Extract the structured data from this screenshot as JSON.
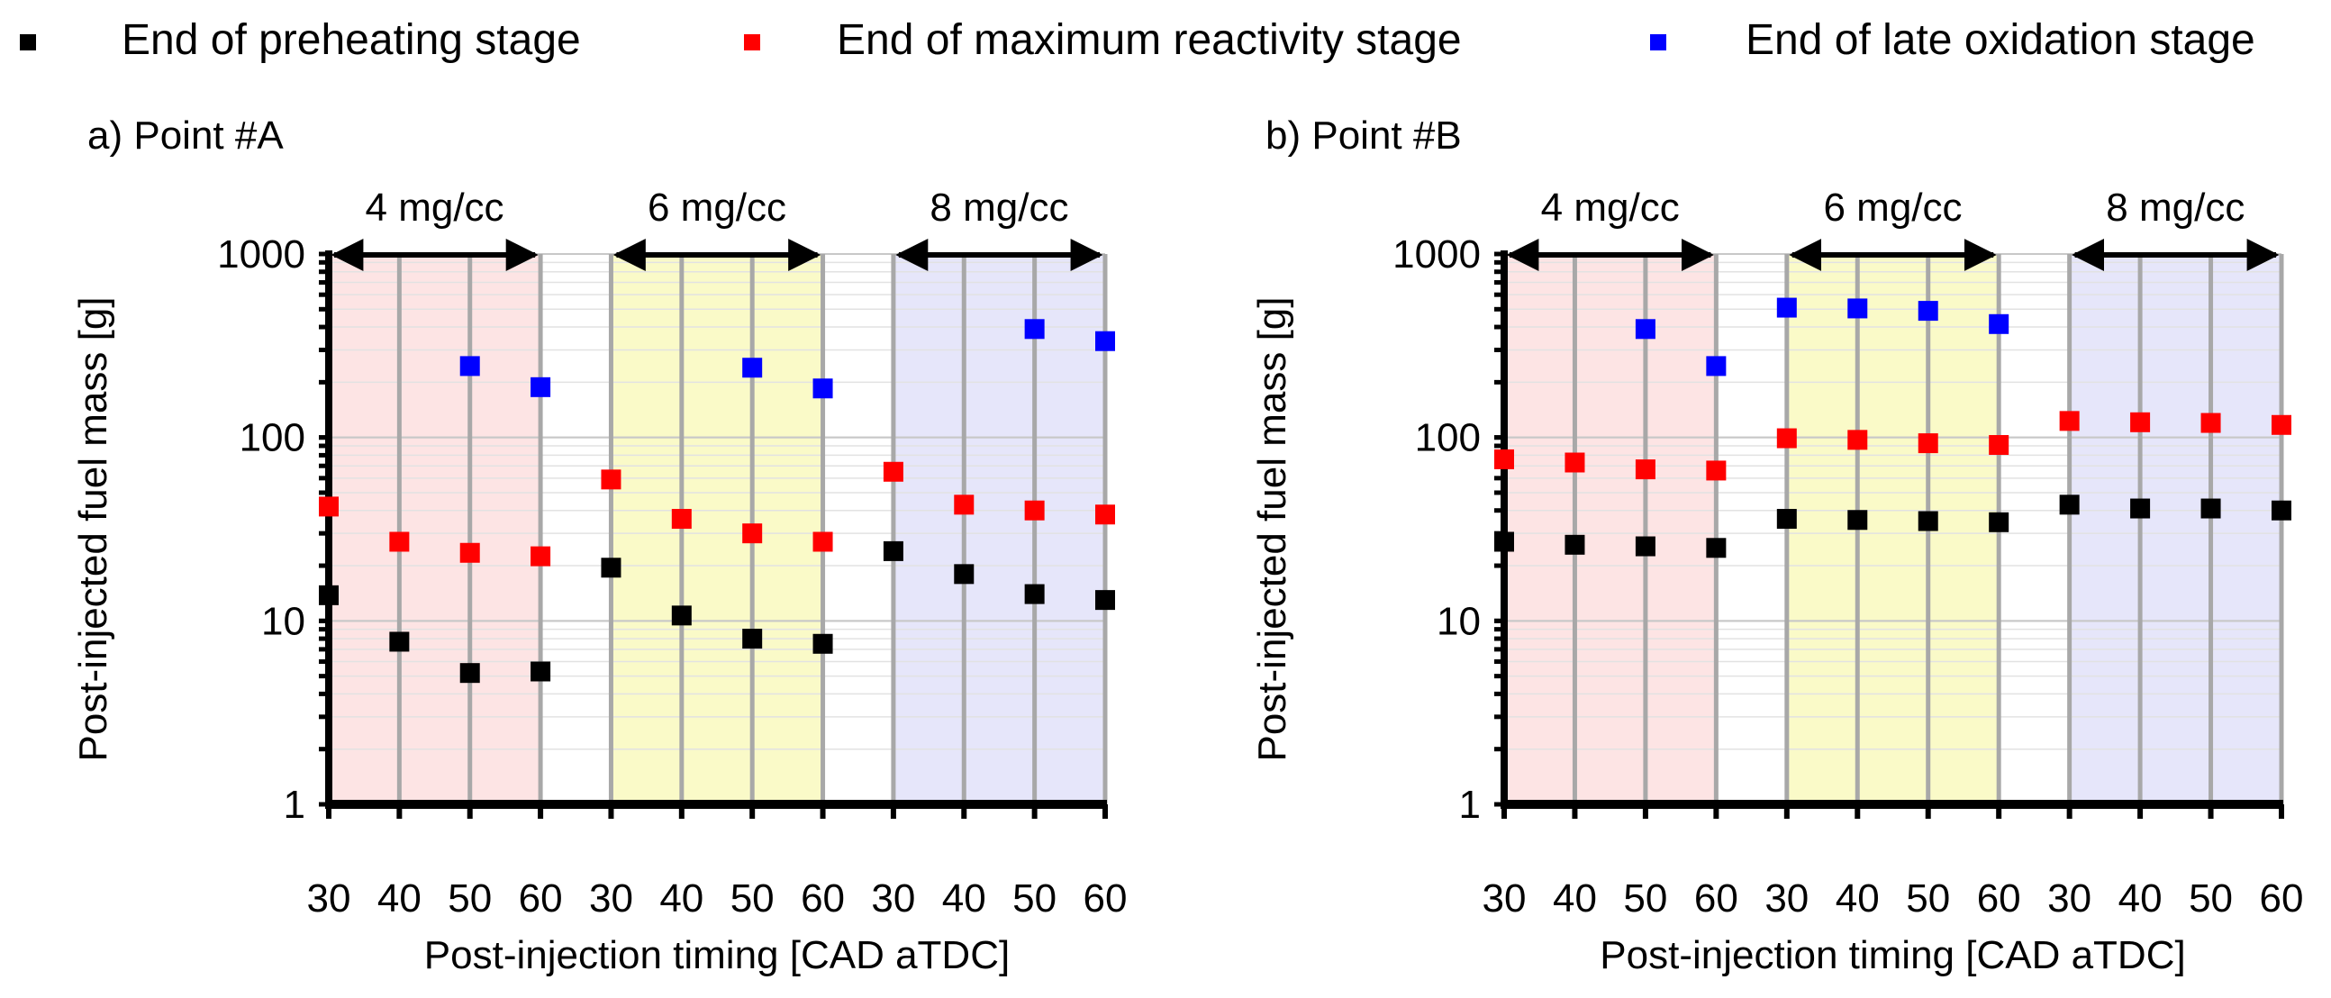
{
  "legend": [
    {
      "label": "End of preheating stage",
      "color": "#000000"
    },
    {
      "label": "End of maximum reactivity stage",
      "color": "#ff0000"
    },
    {
      "label": "End of late oxidation stage",
      "color": "#0000ff"
    }
  ],
  "chart_data": [
    {
      "type": "scatter",
      "title": "a) Point #A",
      "xlabel": "Post-injection timing [CAD aTDC]",
      "ylabel": "Post-injected fuel mass [g]",
      "yscale": "log",
      "ylim": [
        1,
        1000
      ],
      "yticks": [
        "1",
        "10",
        "100",
        "1000"
      ],
      "categories": [
        "30",
        "40",
        "50",
        "60",
        "30",
        "40",
        "50",
        "60",
        "30",
        "40",
        "50",
        "60"
      ],
      "groups": [
        {
          "label": "4 mg/cc",
          "color": "#fde4e4"
        },
        {
          "label": "6 mg/cc",
          "color": "#fafac8"
        },
        {
          "label": "8 mg/cc",
          "color": "#e6e6fa"
        }
      ],
      "series": [
        {
          "name": "End of preheating stage",
          "color": "#000000",
          "values": [
            13.8,
            7.7,
            5.2,
            5.3,
            19.5,
            10.7,
            8.0,
            7.5,
            24,
            18,
            14,
            13
          ]
        },
        {
          "name": "End of maximum reactivity stage",
          "color": "#ff0000",
          "values": [
            42,
            27,
            23.5,
            22.5,
            59,
            36,
            30,
            27,
            65,
            43,
            40,
            38
          ]
        },
        {
          "name": "End of late oxidation stage",
          "color": "#0000ff",
          "values": [
            null,
            null,
            245,
            188,
            null,
            null,
            240,
            185,
            null,
            null,
            390,
            335
          ]
        }
      ]
    },
    {
      "type": "scatter",
      "title": "b) Point #B",
      "xlabel": "Post-injection timing [CAD aTDC]",
      "ylabel": "Post-injected fuel mass [g]",
      "yscale": "log",
      "ylim": [
        1,
        1000
      ],
      "yticks": [
        "1",
        "10",
        "100",
        "1000"
      ],
      "categories": [
        "30",
        "40",
        "50",
        "60",
        "30",
        "40",
        "50",
        "60",
        "30",
        "40",
        "50",
        "60"
      ],
      "groups": [
        {
          "label": "4 mg/cc",
          "color": "#fde4e4"
        },
        {
          "label": "6 mg/cc",
          "color": "#fafac8"
        },
        {
          "label": "8 mg/cc",
          "color": "#e6e6fa"
        }
      ],
      "series": [
        {
          "name": "End of preheating stage",
          "color": "#000000",
          "values": [
            27,
            26,
            25.5,
            25,
            36,
            35.5,
            35,
            34.5,
            43,
            41,
            41,
            40
          ]
        },
        {
          "name": "End of maximum reactivity stage",
          "color": "#ff0000",
          "values": [
            76,
            73,
            67,
            66,
            99,
            97,
            93,
            91,
            123,
            121,
            120,
            117
          ]
        },
        {
          "name": "End of late oxidation stage",
          "color": "#0000ff",
          "values": [
            null,
            null,
            390,
            245,
            510,
            505,
            490,
            415,
            null,
            null,
            null,
            null
          ]
        }
      ]
    }
  ]
}
